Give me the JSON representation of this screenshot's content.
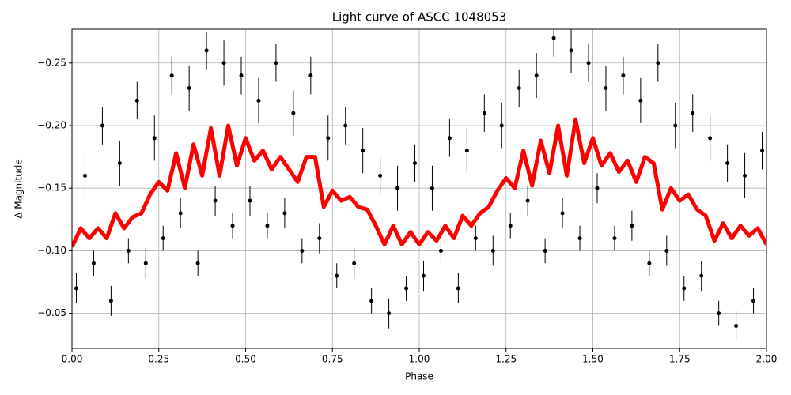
{
  "chart_data": {
    "type": "scatter",
    "title": "Light curve of ASCC 1048053",
    "xlabel": "Phase",
    "ylabel": "Δ Magnitude",
    "xlim": [
      0,
      2
    ],
    "ylim": [
      -0.022,
      -0.277
    ],
    "grid": true,
    "xticks": [
      {
        "value": 0,
        "label": "0.00"
      },
      {
        "value": 0.25,
        "label": "0.25"
      },
      {
        "value": 0.5,
        "label": "0.50"
      },
      {
        "value": 0.75,
        "label": "0.75"
      },
      {
        "value": 1,
        "label": "1.00"
      },
      {
        "value": 1.25,
        "label": "1.25"
      },
      {
        "value": 1.5,
        "label": "1.50"
      },
      {
        "value": 1.75,
        "label": "1.75"
      },
      {
        "value": 2,
        "label": "2.00"
      }
    ],
    "yticks": [
      {
        "value": -0.25,
        "label": "−0.25"
      },
      {
        "value": -0.2,
        "label": "−0.20"
      },
      {
        "value": -0.15,
        "label": "−0.15"
      },
      {
        "value": -0.1,
        "label": "−0.10"
      },
      {
        "value": -0.05,
        "label": "−0.05"
      }
    ],
    "points": {
      "color": "#000000",
      "x": [
        0.0125,
        0.0375,
        0.0625,
        0.0875,
        0.1125,
        0.1375,
        0.1625,
        0.1875,
        0.2125,
        0.2375,
        0.2625,
        0.2875,
        0.3125,
        0.3375,
        0.3625,
        0.3875,
        0.4125,
        0.4375,
        0.4625,
        0.4875,
        0.5125,
        0.5375,
        0.5625,
        0.5875,
        0.6125,
        0.6375,
        0.6625,
        0.6875,
        0.7125,
        0.7375,
        0.7625,
        0.7875,
        0.8125,
        0.8375,
        0.8625,
        0.8875,
        0.9125,
        0.9375,
        0.9625,
        0.9875,
        1.0125,
        1.0375,
        1.0625,
        1.0875,
        1.1125,
        1.1375,
        1.1625,
        1.1875,
        1.2125,
        1.2375,
        1.2625,
        1.2875,
        1.3125,
        1.3375,
        1.3625,
        1.3875,
        1.4125,
        1.4375,
        1.4625,
        1.4875,
        1.5125,
        1.5375,
        1.5625,
        1.5875,
        1.6125,
        1.6375,
        1.6625,
        1.6875,
        1.7125,
        1.7375,
        1.7625,
        1.7875,
        1.8125,
        1.8375,
        1.8625,
        1.8875,
        1.9125,
        1.9375,
        1.9625,
        1.9875
      ],
      "y": [
        -0.07,
        -0.16,
        -0.09,
        -0.2,
        -0.06,
        -0.17,
        -0.1,
        -0.22,
        -0.09,
        -0.19,
        -0.11,
        -0.24,
        -0.13,
        -0.23,
        -0.09,
        -0.26,
        -0.14,
        -0.25,
        -0.12,
        -0.24,
        -0.14,
        -0.22,
        -0.12,
        -0.25,
        -0.13,
        -0.21,
        -0.1,
        -0.24,
        -0.11,
        -0.19,
        -0.08,
        -0.2,
        -0.09,
        -0.18,
        -0.06,
        -0.16,
        -0.05,
        -0.15,
        -0.07,
        -0.17,
        -0.08,
        -0.15,
        -0.1,
        -0.19,
        -0.07,
        -0.18,
        -0.11,
        -0.21,
        -0.1,
        -0.2,
        -0.12,
        -0.23,
        -0.14,
        -0.24,
        -0.1,
        -0.27,
        -0.13,
        -0.26,
        -0.11,
        -0.25,
        -0.15,
        -0.23,
        -0.11,
        -0.24,
        -0.12,
        -0.22,
        -0.09,
        -0.25,
        -0.1,
        -0.2,
        -0.07,
        -0.21,
        -0.08,
        -0.19,
        -0.05,
        -0.17,
        -0.04,
        -0.16,
        -0.06,
        -0.18
      ],
      "err": [
        0.012,
        0.018,
        0.01,
        0.015,
        0.012,
        0.018,
        0.01,
        0.015,
        0.012,
        0.018,
        0.01,
        0.015,
        0.012,
        0.018,
        0.01,
        0.015,
        0.012,
        0.018,
        0.01,
        0.015,
        0.012,
        0.018,
        0.01,
        0.015,
        0.012,
        0.018,
        0.01,
        0.015,
        0.012,
        0.018,
        0.01,
        0.015,
        0.012,
        0.018,
        0.01,
        0.015,
        0.012,
        0.018,
        0.01,
        0.015,
        0.012,
        0.018,
        0.01,
        0.015,
        0.012,
        0.018,
        0.01,
        0.015,
        0.012,
        0.018,
        0.01,
        0.015,
        0.012,
        0.018,
        0.01,
        0.015,
        0.012,
        0.018,
        0.01,
        0.015,
        0.012,
        0.018,
        0.01,
        0.015,
        0.012,
        0.018,
        0.01,
        0.015,
        0.012,
        0.018,
        0.01,
        0.015,
        0.012,
        0.018,
        0.01,
        0.015,
        0.012,
        0.018,
        0.01,
        0.015
      ]
    },
    "fit": {
      "color": "#ff0000",
      "x": [
        0,
        0.025,
        0.05,
        0.075,
        0.1,
        0.125,
        0.15,
        0.175,
        0.2,
        0.225,
        0.25,
        0.275,
        0.3,
        0.325,
        0.35,
        0.375,
        0.4,
        0.425,
        0.45,
        0.475,
        0.5,
        0.525,
        0.55,
        0.575,
        0.6,
        0.625,
        0.65,
        0.675,
        0.7,
        0.725,
        0.75,
        0.775,
        0.8,
        0.825,
        0.85,
        0.875,
        0.9,
        0.925,
        0.95,
        0.975,
        1,
        1.025,
        1.05,
        1.075,
        1.1,
        1.125,
        1.15,
        1.175,
        1.2,
        1.225,
        1.25,
        1.275,
        1.3,
        1.325,
        1.35,
        1.375,
        1.4,
        1.425,
        1.45,
        1.475,
        1.5,
        1.525,
        1.55,
        1.575,
        1.6,
        1.625,
        1.65,
        1.675,
        1.7,
        1.725,
        1.75,
        1.775,
        1.8,
        1.825,
        1.85,
        1.875,
        1.9,
        1.925,
        1.95,
        1.975,
        2
      ],
      "y": [
        -0.103,
        -0.118,
        -0.11,
        -0.118,
        -0.11,
        -0.13,
        -0.118,
        -0.127,
        -0.13,
        -0.145,
        -0.155,
        -0.148,
        -0.178,
        -0.15,
        -0.185,
        -0.16,
        -0.198,
        -0.16,
        -0.2,
        -0.168,
        -0.19,
        -0.172,
        -0.18,
        -0.165,
        -0.175,
        -0.165,
        -0.155,
        -0.175,
        -0.175,
        -0.135,
        -0.148,
        -0.14,
        -0.143,
        -0.135,
        -0.133,
        -0.12,
        -0.105,
        -0.12,
        -0.105,
        -0.115,
        -0.105,
        -0.115,
        -0.108,
        -0.12,
        -0.11,
        -0.128,
        -0.12,
        -0.13,
        -0.135,
        -0.148,
        -0.158,
        -0.15,
        -0.18,
        -0.152,
        -0.188,
        -0.162,
        -0.2,
        -0.16,
        -0.205,
        -0.17,
        -0.19,
        -0.168,
        -0.178,
        -0.163,
        -0.172,
        -0.155,
        -0.175,
        -0.17,
        -0.133,
        -0.15,
        -0.14,
        -0.145,
        -0.133,
        -0.128,
        -0.108,
        -0.122,
        -0.11,
        -0.12,
        -0.112,
        -0.118,
        -0.105
      ]
    }
  }
}
